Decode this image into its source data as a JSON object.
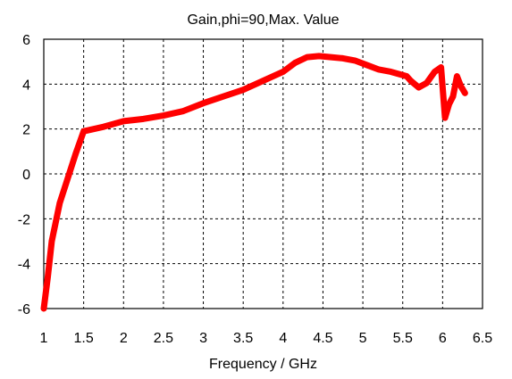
{
  "chart_data": {
    "type": "line",
    "title": "Gain,phi=90,Max. Value",
    "xlabel": "Frequency / GHz",
    "ylabel": "",
    "xlim": [
      1,
      6.5
    ],
    "ylim": [
      -6,
      6
    ],
    "xticks": [
      1,
      1.5,
      2,
      2.5,
      3,
      3.5,
      4,
      4.5,
      5,
      5.5,
      6,
      6.5
    ],
    "yticks": [
      -6,
      -4,
      -2,
      0,
      2,
      4,
      6
    ],
    "grid": true,
    "legend": "none",
    "series": [
      {
        "color": "#ff0000",
        "x": [
          1.0,
          1.05,
          1.1,
          1.2,
          1.3,
          1.4,
          1.5,
          1.75,
          2.0,
          2.25,
          2.5,
          2.75,
          3.0,
          3.25,
          3.5,
          3.75,
          4.0,
          4.15,
          4.3,
          4.45,
          4.6,
          4.75,
          4.9,
          5.05,
          5.2,
          5.35,
          5.45,
          5.55,
          5.6,
          5.7,
          5.8,
          5.9,
          5.98,
          6.03,
          6.08,
          6.13,
          6.18,
          6.23,
          6.28
        ],
        "y": [
          -6.0,
          -4.6,
          -3.0,
          -1.3,
          -0.2,
          0.9,
          1.9,
          2.1,
          2.35,
          2.45,
          2.6,
          2.8,
          3.15,
          3.45,
          3.75,
          4.15,
          4.55,
          4.95,
          5.2,
          5.25,
          5.2,
          5.15,
          5.05,
          4.85,
          4.65,
          4.55,
          4.45,
          4.35,
          4.15,
          3.85,
          4.05,
          4.55,
          4.75,
          2.5,
          3.1,
          3.45,
          4.35,
          3.9,
          3.6
        ]
      }
    ]
  }
}
